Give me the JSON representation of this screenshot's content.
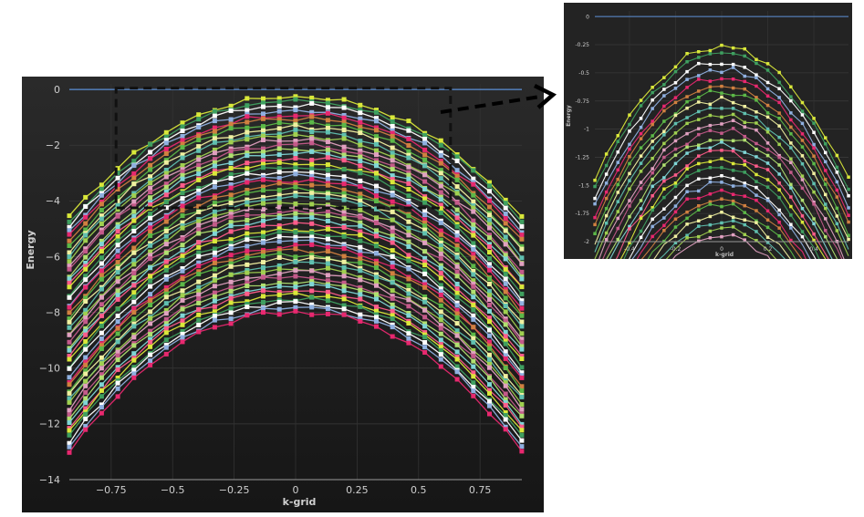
{
  "chart_data": [
    {
      "id": "main",
      "type": "line",
      "title": "",
      "xlabel": "k-grid",
      "ylabel": "Energy",
      "xlim": [
        -0.92,
        0.92
      ],
      "ylim": [
        -14,
        0.2
      ],
      "x_ticks": [
        -0.75,
        -0.5,
        -0.25,
        0,
        0.25,
        0.5,
        0.75
      ],
      "x_tick_labels": [
        "−0.75",
        "−0.5",
        "−0.25",
        "0",
        "0.25",
        "0.5",
        "0.75"
      ],
      "y_ticks": [
        0,
        -2,
        -4,
        -6,
        -8,
        -10,
        -12,
        -14
      ],
      "y_tick_labels": [
        "0",
        "−2",
        "−4",
        "−6",
        "−8",
        "−10",
        "−12",
        "−14"
      ],
      "grid": true,
      "background": "#202020",
      "reference_line": {
        "y": 0,
        "color": "#5b8fd6"
      },
      "band_model": {
        "x_min": -0.92,
        "x_max": 0.92,
        "step": 0.0657,
        "count": 50,
        "top_min": -0.25,
        "bottom_min": -8.0,
        "edge_top": -4.6,
        "edge_bottom": -13.0,
        "curvature": 1.35
      },
      "highlight_region": {
        "x": [
          -0.73,
          0.63
        ],
        "y": [
          -4.25,
          0.05
        ],
        "stroke": "#111111",
        "dash": "dashed"
      }
    },
    {
      "id": "inset",
      "type": "line",
      "title": "",
      "xlabel": "k-grid",
      "ylabel": "Energy",
      "xlim": [
        -0.55,
        0.55
      ],
      "ylim": [
        -2,
        0.05
      ],
      "x_ticks": [
        -0.4,
        -0.2,
        0,
        0.2,
        0.4
      ],
      "x_tick_labels": [
        "-0.4",
        "-0.2",
        "0",
        "0.2",
        "0.4"
      ],
      "y_ticks": [
        0,
        -0.25,
        -0.5,
        -0.75,
        -1,
        -1.25,
        -1.5,
        -1.75,
        -2
      ],
      "y_tick_labels": [
        "0",
        "-0.25",
        "-0.5",
        "-0.75",
        "-1",
        "-1.25",
        "-1.5",
        "-1.75",
        "-2"
      ],
      "grid": true,
      "background": "#242424",
      "reference_line": {
        "y": 0,
        "color": "#5b8fd6"
      },
      "band_model": {
        "x_min": -0.55,
        "x_max": 0.55,
        "step": 0.05,
        "count": 26,
        "top_min": -0.27,
        "bottom_min": -1.95,
        "edge_top": -1.45,
        "edge_bottom": -3.4,
        "curvature": 3.5
      }
    }
  ],
  "palette": [
    "#5cb848",
    "#e8286f",
    "#ffffff",
    "#d9e83a",
    "#7fd6d6",
    "#c45a8a",
    "#a0d050",
    "#f0f0a0",
    "#d08040",
    "#8fb0e0",
    "#3fa060",
    "#ff5c8a",
    "#b0e070",
    "#e0a0c0",
    "#60c0b0"
  ],
  "callout_arrow_color": "#000000"
}
